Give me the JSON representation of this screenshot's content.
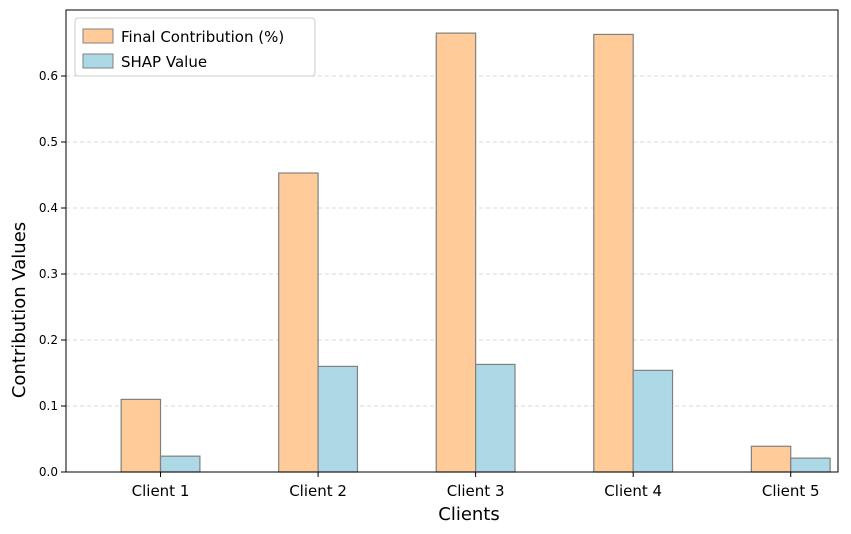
{
  "chart_data": {
    "type": "bar",
    "title": "",
    "xlabel": "Clients",
    "ylabel": "Contribution Values",
    "categories": [
      "Client 1",
      "Client 2",
      "Client 3",
      "Client 4",
      "Client 5"
    ],
    "series": [
      {
        "name": "Final Contribution (%)",
        "values": [
          0.11,
          0.453,
          0.665,
          0.663,
          0.039
        ]
      },
      {
        "name": "SHAP Value",
        "values": [
          0.024,
          0.16,
          0.163,
          0.154,
          0.021
        ]
      }
    ],
    "ylim": [
      0,
      0.7
    ],
    "yticks": [
      "0.0",
      "0.1",
      "0.2",
      "0.3",
      "0.4",
      "0.5",
      "0.6"
    ],
    "grid": "y-dashed",
    "legend_position": "top-left",
    "colors": {
      "Final Contribution (%)": "#ffcc99",
      "SHAP Value": "#add8e6",
      "bar_edge": "#808080",
      "grid": "#cccccc"
    }
  }
}
